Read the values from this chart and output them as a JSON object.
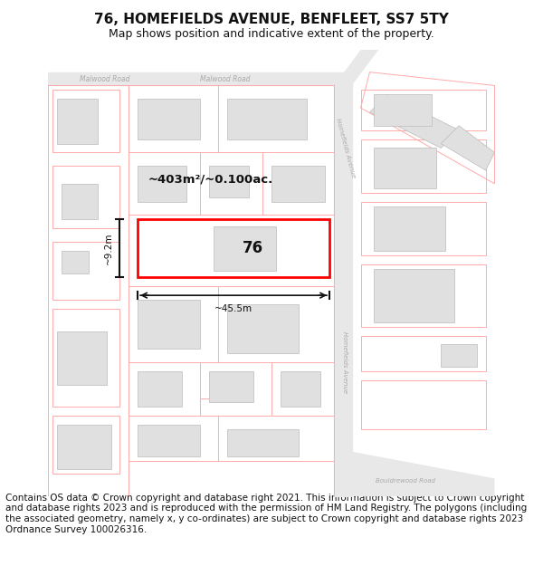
{
  "title": "76, HOMEFIELDS AVENUE, BENFLEET, SS7 5TY",
  "subtitle": "Map shows position and indicative extent of the property.",
  "footer": "Contains OS data © Crown copyright and database right 2021. This information is subject to Crown copyright and database rights 2023 and is reproduced with the permission of HM Land Registry. The polygons (including the associated geometry, namely x, y co-ordinates) are subject to Crown copyright and database rights 2023 Ordnance Survey 100026316.",
  "bg_color": "#ffffff",
  "map_bg": "#ffffff",
  "plot_color": "#ff0000",
  "neighbour_color": "#ffaaaa",
  "building_fill": "#e0e0e0",
  "road_label_color": "#aaaaaa",
  "dim_color": "#000000",
  "area_text": "~403m²/~0.100ac.",
  "width_label": "~45.5m",
  "height_label": "~9.2m",
  "plot_number": "76",
  "title_fontsize": 11,
  "subtitle_fontsize": 9,
  "footer_fontsize": 7.5
}
